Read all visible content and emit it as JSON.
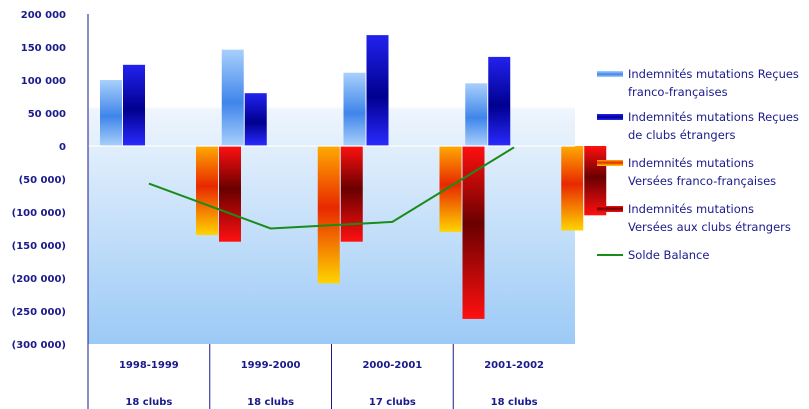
{
  "chart_data": {
    "type": "bar",
    "categories": [
      "1998-1999",
      "1999-2000",
      "2000-2001",
      "2001-2002"
    ],
    "sub_categories": [
      "18 clubs",
      "18 clubs",
      "17 clubs",
      "18 clubs"
    ],
    "ylim": [
      -300000,
      200000
    ],
    "y_step": 50000,
    "y_tick_labels": [
      "200 000",
      "150 000",
      "100 000",
      "50 000",
      "0",
      "(50 000)",
      "(100 000)",
      "(150 000)",
      "(200 000)",
      "(250 000)",
      "(300 000)"
    ],
    "legend_position": "right",
    "series": [
      {
        "name_lines": [
          "Indemnités mutations Reçues",
          "franco-françaises"
        ],
        "values": [
          100000,
          146000,
          111000,
          95000
        ],
        "color": "#4a8fe8",
        "type": "bar"
      },
      {
        "name_lines": [
          "Indemnités mutations Reçues",
          "de clubs étrangers"
        ],
        "values": [
          123000,
          80000,
          168000,
          135000
        ],
        "color": "#1414c8",
        "type": "bar"
      },
      {
        "name_lines": [
          "Indemnités mutations",
          "Versées franco-françaises"
        ],
        "values": [
          -135000,
          -208000,
          -130000,
          -128000
        ],
        "color": "#ff8a00",
        "type": "bar"
      },
      {
        "name_lines": [
          "Indemnités mutations",
          "Versées aux clubs étrangers"
        ],
        "values": [
          -145000,
          -145000,
          -262000,
          -105000
        ],
        "color": "#cc0000",
        "type": "bar"
      },
      {
        "name_lines": [
          "Solde Balance"
        ],
        "values": [
          -57000,
          -125000,
          -115000,
          -2000
        ],
        "color": "#1a8c1a",
        "type": "line"
      }
    ]
  }
}
